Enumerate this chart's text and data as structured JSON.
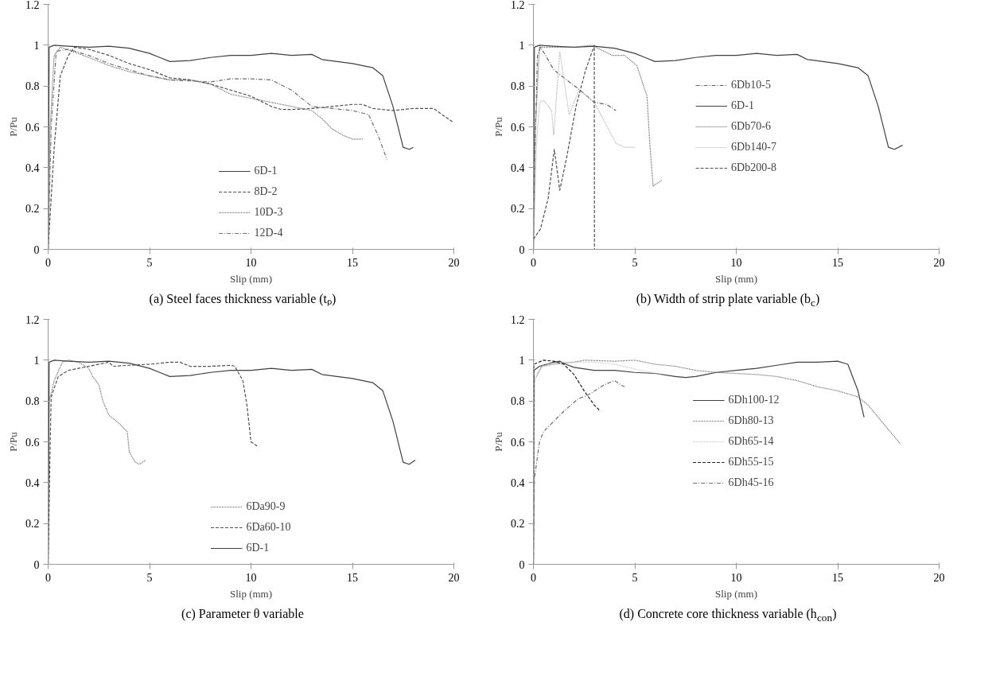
{
  "chart_data": [
    {
      "type": "line",
      "title": "(a) Steel faces thickness variable (tₚ)",
      "xlabel": "Slip (mm)",
      "ylabel": "P/Pu",
      "xlim": [
        0,
        20
      ],
      "ylim": [
        0,
        1.2
      ],
      "xticks": [
        0,
        5,
        10,
        15,
        20
      ],
      "yticks": [
        0,
        0.2,
        0.4,
        0.6,
        0.8,
        1,
        1.2
      ],
      "grid": false,
      "legend": "bottom",
      "series": [
        {
          "name": "6D-1",
          "color": "#404040",
          "line_style": "solid",
          "x": [
            0,
            0.05,
            0.3,
            1,
            2,
            3,
            4,
            5,
            5.5,
            6,
            7,
            8,
            9,
            10,
            11,
            12,
            13,
            13.5,
            15,
            16,
            16.5,
            17,
            17.5,
            17.8,
            18
          ],
          "values": [
            0,
            0.99,
            1.0,
            0.995,
            0.99,
            0.995,
            0.985,
            0.96,
            0.94,
            0.92,
            0.925,
            0.94,
            0.95,
            0.95,
            0.96,
            0.95,
            0.955,
            0.93,
            0.91,
            0.89,
            0.85,
            0.7,
            0.5,
            0.49,
            0.5
          ]
        },
        {
          "name": "8D-2",
          "color": "#505050",
          "line_style": "dashed",
          "x": [
            0,
            0.3,
            0.6,
            1,
            1.3,
            2,
            3,
            4,
            5,
            6,
            7,
            8,
            9,
            10,
            11,
            11.5,
            12,
            13,
            14,
            15,
            15.5,
            16,
            17,
            18,
            19,
            20
          ],
          "values": [
            0,
            0.5,
            0.85,
            0.95,
            0.99,
            0.98,
            0.95,
            0.91,
            0.88,
            0.84,
            0.83,
            0.81,
            0.78,
            0.75,
            0.7,
            0.685,
            0.685,
            0.69,
            0.7,
            0.71,
            0.71,
            0.69,
            0.68,
            0.69,
            0.69,
            0.62
          ]
        },
        {
          "name": "10D-3",
          "color": "#606060",
          "line_style": "dotted",
          "x": [
            0,
            0.1,
            0.3,
            0.6,
            1.2,
            2,
            3,
            4,
            5,
            6,
            7,
            8,
            9,
            10,
            11,
            12,
            13,
            13.5,
            14,
            14.5,
            15,
            15.5
          ],
          "values": [
            0,
            0.6,
            0.95,
            0.99,
            0.97,
            0.94,
            0.9,
            0.87,
            0.85,
            0.83,
            0.83,
            0.81,
            0.76,
            0.74,
            0.72,
            0.7,
            0.68,
            0.64,
            0.59,
            0.56,
            0.54,
            0.54
          ]
        },
        {
          "name": "12D-4",
          "color": "#707070",
          "line_style": "dashdot",
          "x": [
            0,
            0.15,
            0.4,
            1,
            2,
            3,
            4,
            5,
            6,
            7,
            8,
            9,
            10,
            11,
            12,
            13,
            14,
            15,
            15.8,
            16.3,
            16.7
          ],
          "values": [
            0,
            0.6,
            0.97,
            0.98,
            0.95,
            0.91,
            0.88,
            0.85,
            0.83,
            0.825,
            0.82,
            0.835,
            0.835,
            0.83,
            0.78,
            0.7,
            0.69,
            0.68,
            0.66,
            0.55,
            0.44
          ]
        }
      ]
    },
    {
      "type": "line",
      "title": "(b) Width of strip plate variable (b$_{c}$)",
      "xlabel": "Slip (mm)",
      "ylabel": "P/Pu",
      "xlim": [
        0,
        20
      ],
      "ylim": [
        0,
        1.2
      ],
      "xticks": [
        0,
        5,
        10,
        15,
        20
      ],
      "yticks": [
        0,
        0.2,
        0.4,
        0.6,
        0.8,
        1,
        1.2
      ],
      "grid": false,
      "legend": "center",
      "series": [
        {
          "name": "6Db10-5",
          "color": "#606060",
          "line_style": "dashdot",
          "x": [
            0,
            0.05,
            0.2,
            0.35,
            0.6,
            1.0,
            1.64,
            2.3,
            3.0,
            3.6,
            4.07
          ],
          "values": [
            0,
            0.4,
            0.95,
            0.99,
            0.95,
            0.88,
            0.83,
            0.78,
            0.72,
            0.71,
            0.68
          ]
        },
        {
          "name": "6D-1",
          "color": "#404040",
          "line_style": "solid",
          "x": [
            0,
            0.05,
            0.3,
            1,
            2,
            3,
            4,
            5,
            5.5,
            6,
            7,
            8,
            9,
            10,
            11,
            12,
            13,
            13.5,
            15,
            16,
            16.5,
            17,
            17.5,
            17.8,
            18.2
          ],
          "values": [
            0,
            0.99,
            1.0,
            0.995,
            0.99,
            0.995,
            0.985,
            0.96,
            0.94,
            0.92,
            0.925,
            0.94,
            0.95,
            0.95,
            0.96,
            0.95,
            0.955,
            0.93,
            0.91,
            0.89,
            0.85,
            0.7,
            0.5,
            0.49,
            0.51
          ]
        },
        {
          "name": "6Db70-6",
          "color": "#606060",
          "line_style": "dotted",
          "x": [
            0,
            0.1,
            0.3,
            1,
            2,
            2.86,
            3.9,
            4.5,
            5.1,
            5.6,
            5.75,
            5.9,
            6.35
          ],
          "values": [
            0,
            0.6,
            0.99,
            0.99,
            0.99,
            1.0,
            0.95,
            0.95,
            0.9,
            0.75,
            0.5,
            0.31,
            0.34
          ]
        },
        {
          "name": "6Db140-7",
          "color": "#b0b0b0",
          "line_style": "dotted",
          "x": [
            0,
            0.15,
            0.3,
            0.5,
            0.9,
            1.0,
            1.3,
            1.76,
            2.25,
            3.0,
            4.07,
            4.5,
            5.0
          ],
          "values": [
            0,
            0.5,
            0.72,
            0.73,
            0.68,
            0.56,
            0.97,
            0.66,
            0.78,
            0.72,
            0.52,
            0.5,
            0.5
          ]
        },
        {
          "name": "6Db200-8",
          "color": "#505050",
          "line_style": "dashed",
          "x": [
            0,
            0.35,
            0.73,
            1.03,
            1.3,
            1.64,
            2.1,
            2.55,
            3.0,
            3.01
          ],
          "values": [
            0.05,
            0.1,
            0.25,
            0.49,
            0.29,
            0.45,
            0.7,
            0.87,
            1.0,
            0
          ]
        }
      ]
    },
    {
      "type": "line",
      "title": "(c) Parameter θ variable",
      "xlabel": "Slip (mm)",
      "ylabel": "P/Pu",
      "xlim": [
        0,
        20
      ],
      "ylim": [
        0,
        1.2
      ],
      "xticks": [
        0,
        5,
        10,
        15,
        20
      ],
      "yticks": [
        0,
        0.2,
        0.4,
        0.6,
        0.8,
        1,
        1.2
      ],
      "grid": false,
      "legend": "bottom",
      "series": [
        {
          "name": "6Da90-9",
          "color": "#606060",
          "line_style": "dotted",
          "x": [
            0,
            0.05,
            0.3,
            0.7,
            1.0,
            1.5,
            2.0,
            2.2,
            2.5,
            2.7,
            3.0,
            3.5,
            3.9,
            4.0,
            4.3,
            4.5,
            4.8
          ],
          "values": [
            0,
            0.8,
            0.9,
            0.99,
            1.0,
            0.99,
            0.96,
            0.92,
            0.88,
            0.8,
            0.73,
            0.69,
            0.65,
            0.55,
            0.5,
            0.49,
            0.51
          ]
        },
        {
          "name": "6Da60-10",
          "color": "#505050",
          "line_style": "dashed",
          "x": [
            0,
            0.1,
            0.15,
            0.5,
            1,
            2,
            3,
            3.2,
            4,
            5,
            6,
            6.5,
            7,
            8,
            9,
            9.2,
            9.6,
            9.8,
            10,
            10.3
          ],
          "values": [
            0,
            0.58,
            0.82,
            0.92,
            0.95,
            0.97,
            0.99,
            0.97,
            0.975,
            0.98,
            0.99,
            0.99,
            0.97,
            0.97,
            0.975,
            0.97,
            0.9,
            0.78,
            0.6,
            0.58
          ]
        },
        {
          "name": "6D-1",
          "color": "#404040",
          "line_style": "solid",
          "x": [
            0,
            0.05,
            0.3,
            1,
            2,
            3,
            4,
            5,
            5.5,
            6,
            7,
            8,
            9,
            10,
            11,
            12,
            13,
            13.5,
            15,
            16,
            16.5,
            17,
            17.5,
            17.8,
            18.1
          ],
          "values": [
            0,
            0.99,
            1.0,
            0.995,
            0.99,
            0.995,
            0.985,
            0.96,
            0.94,
            0.92,
            0.925,
            0.94,
            0.95,
            0.95,
            0.96,
            0.95,
            0.955,
            0.93,
            0.91,
            0.89,
            0.85,
            0.7,
            0.5,
            0.49,
            0.51
          ]
        }
      ]
    },
    {
      "type": "line",
      "title": "(d) Concrete core thickness variable (h$_{con}$)",
      "xlabel": "Slip (mm)",
      "ylabel": "P/Pu",
      "xlim": [
        0,
        20
      ],
      "ylim": [
        0,
        1.2
      ],
      "xticks": [
        0,
        5,
        10,
        15,
        20
      ],
      "yticks": [
        0,
        0.2,
        0.4,
        0.6,
        0.8,
        1,
        1.2
      ],
      "grid": false,
      "legend": "center",
      "series": [
        {
          "name": "6Dh100-12",
          "color": "#404040",
          "line_style": "solid",
          "x": [
            0,
            0.02,
            0.3,
            1.0,
            1.3,
            1.6,
            2.0,
            3,
            4,
            5,
            6,
            7,
            7.5,
            8,
            8.5,
            9,
            10,
            11,
            12,
            13,
            14,
            15,
            15.5,
            16,
            16.3
          ],
          "values": [
            0,
            0.95,
            0.97,
            0.99,
            0.995,
            0.98,
            0.965,
            0.95,
            0.95,
            0.94,
            0.935,
            0.92,
            0.915,
            0.92,
            0.93,
            0.94,
            0.95,
            0.96,
            0.975,
            0.99,
            0.99,
            0.995,
            0.98,
            0.85,
            0.72
          ]
        },
        {
          "name": "6Dh80-13",
          "color": "#606060",
          "line_style": "dotted",
          "x": [
            0,
            0.05,
            0.4,
            1,
            2,
            2.5,
            4,
            5,
            6,
            7,
            8,
            9,
            10,
            11,
            12,
            13,
            14,
            15,
            16,
            16.5,
            17,
            17.5,
            18.1
          ],
          "values": [
            0,
            0.9,
            0.97,
            0.98,
            0.99,
            1.0,
            0.995,
            1.0,
            0.98,
            0.97,
            0.95,
            0.94,
            0.935,
            0.93,
            0.92,
            0.9,
            0.87,
            0.85,
            0.82,
            0.78,
            0.72,
            0.66,
            0.59
          ]
        },
        {
          "name": "6Dh65-14",
          "color": "#c0c0c0",
          "line_style": "dotted",
          "x": [
            0,
            0.05,
            0.5,
            1.5,
            3,
            4,
            5.3,
            6.3
          ],
          "values": [
            0,
            0.9,
            0.98,
            0.99,
            0.99,
            0.98,
            0.95,
            0.93
          ]
        },
        {
          "name": "6Dh55-15",
          "color": "#202020",
          "line_style": "dashed",
          "x": [
            0,
            0.02,
            0.5,
            1.0,
            1.5,
            2.0,
            2.5,
            3.0,
            3.3
          ],
          "values": [
            0,
            0.98,
            1.0,
            0.995,
            0.98,
            0.93,
            0.85,
            0.78,
            0.75
          ]
        },
        {
          "name": "6Dh45-16",
          "color": "#707070",
          "line_style": "dashdot",
          "x": [
            0,
            0.05,
            0.3,
            0.5,
            1,
            1.5,
            2.2,
            2.7,
            3.5,
            4.0,
            4.3,
            4.5
          ],
          "values": [
            0,
            0.42,
            0.6,
            0.65,
            0.7,
            0.75,
            0.81,
            0.83,
            0.88,
            0.9,
            0.88,
            0.87
          ]
        }
      ]
    }
  ]
}
